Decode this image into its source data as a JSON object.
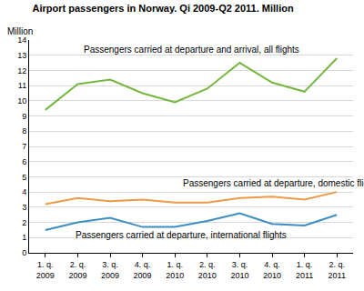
{
  "chart_data": {
    "type": "line",
    "title": "Airport passengers in Norway. Qi 2009-Q2 2011. Million",
    "ylabel": "Million",
    "categories": [
      "1. q. 2009",
      "2. q. 2009",
      "3. q. 2009",
      "4. q. 2009",
      "1. q. 2010",
      "2. q. 2010",
      "3. q. 2010",
      "4. q. 2010",
      "1. q. 2011",
      "2. q. 2011"
    ],
    "series": [
      {
        "name": "Passengers carried at departure and arrival, all flights",
        "color": "#76b83f",
        "values": [
          9.4,
          11.1,
          11.4,
          10.5,
          9.9,
          10.8,
          12.5,
          11.2,
          10.6,
          12.8
        ]
      },
      {
        "name": "Passengers carried at departure, domestic flights",
        "color": "#ef9a45",
        "values": [
          3.2,
          3.6,
          3.4,
          3.5,
          3.3,
          3.3,
          3.6,
          3.7,
          3.5,
          4.0
        ]
      },
      {
        "name": "Passengers carried at departure, international flights",
        "color": "#3b8dc4",
        "values": [
          1.5,
          2.0,
          2.3,
          1.7,
          1.7,
          2.1,
          2.6,
          1.9,
          1.8,
          2.5
        ]
      }
    ],
    "ylim": [
      0,
      14
    ],
    "yticks": [
      0,
      1,
      2,
      3,
      4,
      5,
      6,
      7,
      8,
      9,
      10,
      11,
      12,
      13,
      14
    ],
    "grid": true
  }
}
